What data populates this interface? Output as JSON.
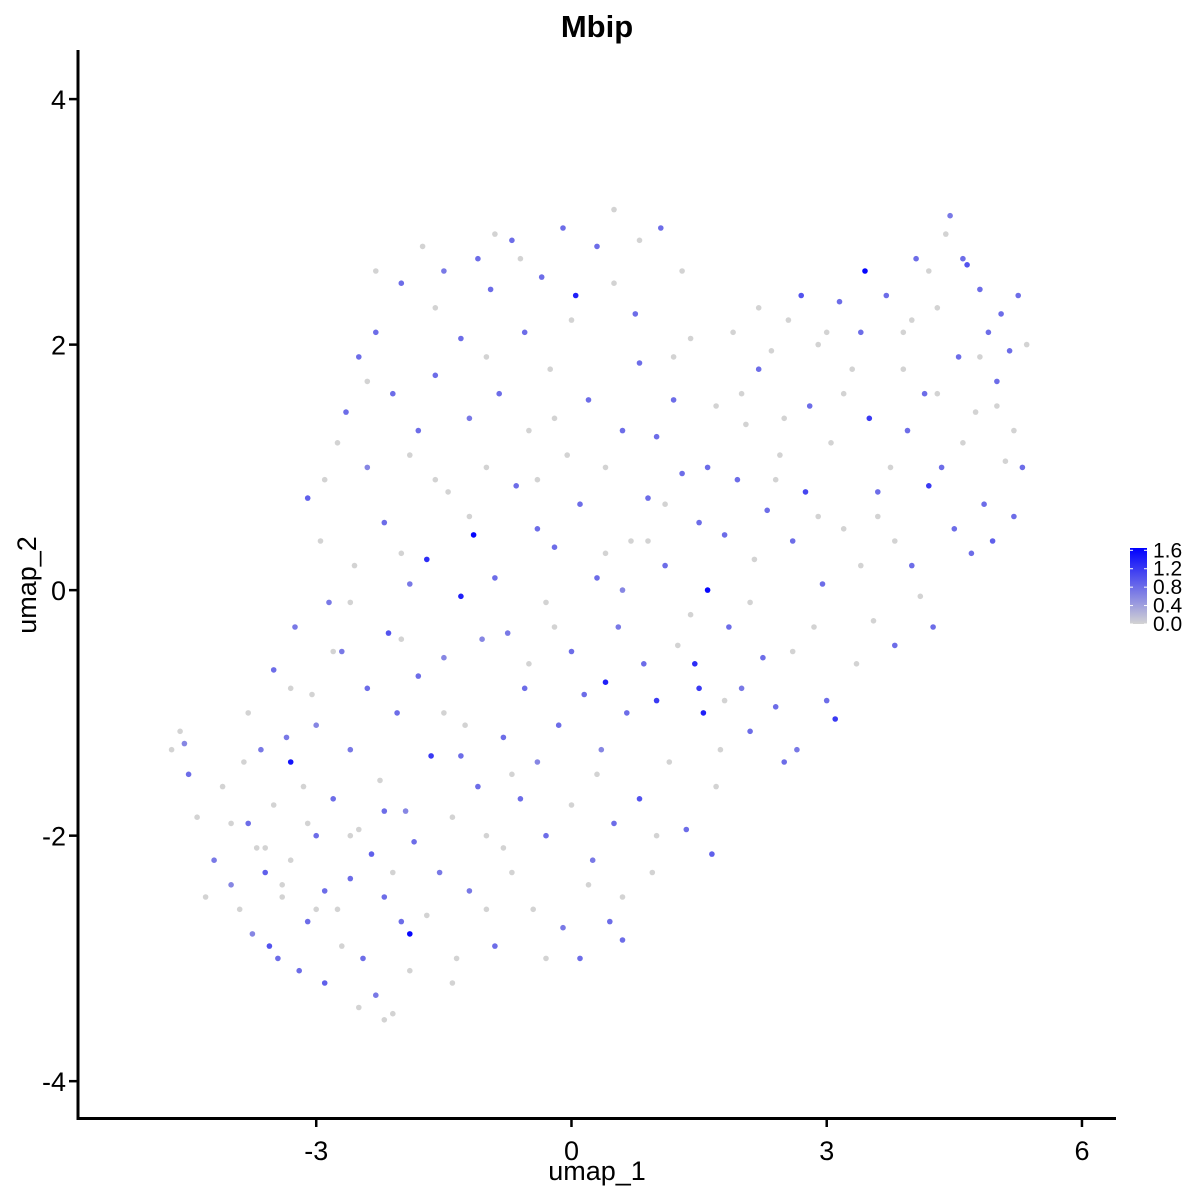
{
  "chart_data": {
    "type": "scatter",
    "title": "Mbip",
    "xlabel": "umap_1",
    "ylabel": "umap_2",
    "xlim": [
      -5.8,
      6.4
    ],
    "ylim": [
      -4.3,
      4.4
    ],
    "x_ticks": [
      -3,
      0,
      3,
      6
    ],
    "x_tick_labels": [
      "-3",
      "0",
      "3",
      "6"
    ],
    "y_ticks": [
      -4,
      -2,
      0,
      2,
      4
    ],
    "y_tick_labels": [
      "-4",
      "-2",
      "0",
      "2",
      "4"
    ],
    "grid": false,
    "legend": {
      "position": "right",
      "type": "colorbar",
      "min": 0.0,
      "max": 1.65,
      "ticks": [
        0.0,
        0.4,
        0.8,
        1.2,
        1.6
      ],
      "tick_labels": [
        "0.0",
        "0.4",
        "0.8",
        "1.2",
        "1.6"
      ],
      "low_color": "#d3d3d3",
      "high_color": "#0000ff"
    },
    "points": [
      [
        -4.7,
        -1.3,
        0
      ],
      [
        -4.6,
        -1.15,
        0
      ],
      [
        -4.55,
        -1.25,
        0.6
      ],
      [
        -4.5,
        -1.5,
        0.8
      ],
      [
        -4.4,
        -1.85,
        0
      ],
      [
        -4.2,
        -2.2,
        0.7
      ],
      [
        -4.1,
        -1.6,
        0
      ],
      [
        -4.0,
        -2.4,
        0.6
      ],
      [
        -3.9,
        -2.6,
        0
      ],
      [
        -3.85,
        -1.4,
        0
      ],
      [
        -3.8,
        -1.9,
        0.8
      ],
      [
        -3.75,
        -2.8,
        0.6
      ],
      [
        -3.7,
        -2.1,
        0
      ],
      [
        -3.65,
        -1.3,
        0.7
      ],
      [
        -3.6,
        -2.3,
        0.9
      ],
      [
        -3.55,
        -2.9,
        1.0
      ],
      [
        -3.5,
        -1.75,
        0
      ],
      [
        -3.5,
        -0.65,
        0.8
      ],
      [
        -3.45,
        -3.0,
        0.8
      ],
      [
        -3.4,
        -2.5,
        0
      ],
      [
        -3.35,
        -1.2,
        0.7
      ],
      [
        -3.3,
        -1.4,
        1.5
      ],
      [
        -3.3,
        -2.2,
        0
      ],
      [
        -3.25,
        -0.3,
        0.7
      ],
      [
        -3.2,
        -3.1,
        0.8
      ],
      [
        -3.15,
        -1.6,
        0
      ],
      [
        -3.1,
        -2.7,
        0.8
      ],
      [
        -3.1,
        0.75,
        0.9
      ],
      [
        -3.05,
        -0.85,
        0
      ],
      [
        -3.0,
        -2.0,
        0.8
      ],
      [
        -3.0,
        -1.1,
        0.6
      ],
      [
        -2.95,
        0.4,
        0
      ],
      [
        -2.9,
        -2.45,
        0.8
      ],
      [
        -2.9,
        -3.2,
        0.9
      ],
      [
        -2.85,
        -0.1,
        0.7
      ],
      [
        -2.8,
        -1.7,
        0.8
      ],
      [
        -2.75,
        1.2,
        0
      ],
      [
        -2.75,
        -2.6,
        0
      ],
      [
        -2.7,
        -0.5,
        0.7
      ],
      [
        -2.65,
        1.45,
        0.8
      ],
      [
        -2.6,
        -1.3,
        0.7
      ],
      [
        -2.6,
        -2.35,
        0.8
      ],
      [
        -2.55,
        0.2,
        0
      ],
      [
        -2.5,
        1.9,
        0.8
      ],
      [
        -2.5,
        -1.95,
        0
      ],
      [
        -2.45,
        -3.0,
        0.8
      ],
      [
        -2.4,
        -0.8,
        0.8
      ],
      [
        -2.4,
        1.0,
        0.6
      ],
      [
        -2.35,
        -2.15,
        0.9
      ],
      [
        -2.3,
        -3.3,
        0.7
      ],
      [
        -2.3,
        2.1,
        0.8
      ],
      [
        -2.25,
        -1.55,
        0
      ],
      [
        -2.2,
        0.55,
        0.8
      ],
      [
        -2.2,
        -2.5,
        0.8
      ],
      [
        -2.15,
        -0.35,
        1.0
      ],
      [
        -2.1,
        -3.45,
        0
      ],
      [
        -2.1,
        1.6,
        0.8
      ],
      [
        -2.05,
        -1.0,
        0.8
      ],
      [
        -2.0,
        -2.7,
        0.8
      ],
      [
        -2.0,
        2.5,
        0.8
      ],
      [
        -1.95,
        -1.8,
        0.6
      ],
      [
        -1.9,
        -2.8,
        1.6
      ],
      [
        -1.9,
        0.05,
        0.7
      ],
      [
        -1.85,
        -2.05,
        0.8
      ],
      [
        -1.8,
        1.3,
        0.8
      ],
      [
        -1.8,
        -0.7,
        0.8
      ],
      [
        -1.75,
        2.8,
        0
      ],
      [
        -1.7,
        -2.65,
        0
      ],
      [
        -1.7,
        0.25,
        1.3
      ],
      [
        -1.65,
        -1.35,
        1.2
      ],
      [
        -1.6,
        1.75,
        0.8
      ],
      [
        -1.55,
        -2.3,
        0.7
      ],
      [
        -1.5,
        2.6,
        0.7
      ],
      [
        -1.5,
        -0.55,
        0.6
      ],
      [
        -1.45,
        0.8,
        0
      ],
      [
        -1.4,
        -1.85,
        0
      ],
      [
        -1.35,
        -3.0,
        0
      ],
      [
        -1.3,
        2.05,
        0.8
      ],
      [
        -1.3,
        -0.05,
        1.4
      ],
      [
        -1.25,
        -1.1,
        0
      ],
      [
        -1.2,
        1.4,
        0.7
      ],
      [
        -1.2,
        -2.45,
        0.7
      ],
      [
        -1.15,
        0.45,
        1.6
      ],
      [
        -1.1,
        2.7,
        0.8
      ],
      [
        -1.1,
        -1.6,
        0.8
      ],
      [
        -1.05,
        -0.4,
        0.6
      ],
      [
        -1.0,
        1.0,
        0
      ],
      [
        -1.0,
        -2.0,
        0
      ],
      [
        -0.95,
        2.45,
        0.8
      ],
      [
        -0.9,
        0.1,
        0.8
      ],
      [
        -0.9,
        -2.9,
        0.8
      ],
      [
        -0.85,
        1.6,
        0.8
      ],
      [
        -0.8,
        -1.2,
        0.8
      ],
      [
        -0.75,
        -0.35,
        0.7
      ],
      [
        -0.7,
        2.85,
        0.8
      ],
      [
        -0.7,
        -2.3,
        0
      ],
      [
        -0.65,
        0.85,
        0.8
      ],
      [
        -0.6,
        -1.7,
        0.8
      ],
      [
        -0.55,
        2.1,
        0.8
      ],
      [
        -0.55,
        -0.8,
        0.8
      ],
      [
        -0.5,
        1.3,
        0
      ],
      [
        -0.45,
        -2.6,
        0
      ],
      [
        -0.4,
        0.5,
        0.8
      ],
      [
        -0.4,
        -1.4,
        0.6
      ],
      [
        -0.35,
        2.55,
        0.8
      ],
      [
        -0.3,
        -0.1,
        0
      ],
      [
        -0.3,
        -2.0,
        0.8
      ],
      [
        -0.25,
        1.8,
        0
      ],
      [
        -0.2,
        0.35,
        0.8
      ],
      [
        -0.15,
        -1.1,
        0.8
      ],
      [
        -0.1,
        2.95,
        0.8
      ],
      [
        -0.1,
        -2.75,
        0.7
      ],
      [
        -0.05,
        1.1,
        0
      ],
      [
        0.0,
        -0.5,
        0.8
      ],
      [
        0.0,
        -1.75,
        0
      ],
      [
        0.05,
        2.4,
        1.4
      ],
      [
        0.1,
        0.7,
        0.8
      ],
      [
        0.1,
        -3.0,
        0.8
      ],
      [
        0.15,
        -0.85,
        0.8
      ],
      [
        0.2,
        1.55,
        0.8
      ],
      [
        0.25,
        -2.2,
        0.7
      ],
      [
        0.3,
        0.1,
        0.8
      ],
      [
        0.3,
        2.8,
        0.8
      ],
      [
        0.35,
        -1.3,
        0.6
      ],
      [
        0.4,
        -0.75,
        1.4
      ],
      [
        0.4,
        1.0,
        0
      ],
      [
        0.45,
        -2.7,
        0.8
      ],
      [
        0.5,
        -1.9,
        0.8
      ],
      [
        0.5,
        2.5,
        0
      ],
      [
        0.55,
        -0.3,
        0.7
      ],
      [
        0.6,
        1.3,
        0.8
      ],
      [
        0.6,
        -2.85,
        0.8
      ],
      [
        0.65,
        -1.0,
        0.8
      ],
      [
        0.7,
        0.4,
        0
      ],
      [
        0.75,
        2.25,
        0.8
      ],
      [
        0.8,
        -1.7,
        1.0
      ],
      [
        0.8,
        1.85,
        0.8
      ],
      [
        0.85,
        -0.6,
        0.8
      ],
      [
        0.9,
        0.75,
        0.8
      ],
      [
        0.95,
        -2.3,
        0
      ],
      [
        1.0,
        1.25,
        0.8
      ],
      [
        1.0,
        -0.9,
        1.2
      ],
      [
        1.05,
        2.95,
        0.8
      ],
      [
        1.1,
        0.2,
        0.8
      ],
      [
        1.15,
        -1.4,
        0
      ],
      [
        1.2,
        1.55,
        0.8
      ],
      [
        1.25,
        -0.45,
        0
      ],
      [
        1.3,
        0.95,
        0.8
      ],
      [
        1.35,
        -1.95,
        0.8
      ],
      [
        1.4,
        2.05,
        0
      ],
      [
        1.45,
        -0.6,
        1.3
      ],
      [
        1.5,
        -0.8,
        1.2
      ],
      [
        1.5,
        0.55,
        0.8
      ],
      [
        1.55,
        -1.0,
        1.4
      ],
      [
        1.6,
        1.0,
        0.8
      ],
      [
        1.6,
        0.0,
        1.6
      ],
      [
        1.65,
        -2.15,
        0.9
      ],
      [
        1.7,
        1.5,
        0
      ],
      [
        1.75,
        -1.3,
        0
      ],
      [
        1.8,
        0.45,
        0.8
      ],
      [
        1.85,
        -0.3,
        0.8
      ],
      [
        1.9,
        2.1,
        0
      ],
      [
        1.95,
        0.9,
        0.8
      ],
      [
        2.0,
        -0.8,
        0.7
      ],
      [
        2.05,
        1.35,
        0
      ],
      [
        2.1,
        -1.15,
        0.8
      ],
      [
        2.15,
        0.25,
        0
      ],
      [
        2.2,
        1.8,
        0.8
      ],
      [
        2.25,
        -0.55,
        0.8
      ],
      [
        2.3,
        0.65,
        0.8
      ],
      [
        2.35,
        1.95,
        0
      ],
      [
        2.4,
        -0.95,
        0.8
      ],
      [
        2.45,
        1.1,
        0
      ],
      [
        2.5,
        -1.4,
        0.8
      ],
      [
        2.55,
        2.2,
        0
      ],
      [
        2.6,
        0.4,
        0.8
      ],
      [
        2.65,
        -1.3,
        0.7
      ],
      [
        2.7,
        2.4,
        1.0
      ],
      [
        2.75,
        0.8,
        1.1
      ],
      [
        2.8,
        1.5,
        0.8
      ],
      [
        2.85,
        -0.3,
        0
      ],
      [
        2.9,
        2.0,
        0
      ],
      [
        2.95,
        0.05,
        0.8
      ],
      [
        3.0,
        -0.9,
        0.8
      ],
      [
        3.05,
        1.2,
        0
      ],
      [
        3.1,
        -1.05,
        1.2
      ],
      [
        3.15,
        2.35,
        0.8
      ],
      [
        3.2,
        0.5,
        0
      ],
      [
        3.3,
        1.8,
        0
      ],
      [
        3.35,
        -0.6,
        0
      ],
      [
        3.4,
        2.1,
        0.8
      ],
      [
        3.45,
        2.6,
        1.6
      ],
      [
        3.5,
        1.4,
        1.2
      ],
      [
        3.55,
        -0.25,
        0
      ],
      [
        3.6,
        0.8,
        0.8
      ],
      [
        3.7,
        2.4,
        0.8
      ],
      [
        3.75,
        1.0,
        0
      ],
      [
        3.8,
        -0.45,
        0.8
      ],
      [
        3.9,
        2.1,
        0
      ],
      [
        3.95,
        1.3,
        0.8
      ],
      [
        4.0,
        0.2,
        0.8
      ],
      [
        4.05,
        2.7,
        0.8
      ],
      [
        4.1,
        -0.05,
        0
      ],
      [
        4.15,
        1.6,
        0.8
      ],
      [
        4.2,
        0.85,
        1.2
      ],
      [
        4.25,
        -0.3,
        0.8
      ],
      [
        4.3,
        2.3,
        0
      ],
      [
        4.35,
        1.0,
        0.8
      ],
      [
        4.4,
        2.9,
        0
      ],
      [
        4.45,
        3.05,
        0.7
      ],
      [
        4.5,
        0.5,
        0.8
      ],
      [
        4.55,
        1.9,
        0.8
      ],
      [
        4.6,
        2.7,
        0.8
      ],
      [
        4.65,
        2.65,
        1.0
      ],
      [
        4.7,
        0.3,
        0.8
      ],
      [
        4.75,
        1.45,
        0
      ],
      [
        4.8,
        2.45,
        0.8
      ],
      [
        4.85,
        0.7,
        0.8
      ],
      [
        4.9,
        2.1,
        0.8
      ],
      [
        4.95,
        0.4,
        0.9
      ],
      [
        5.0,
        1.7,
        0.8
      ],
      [
        5.05,
        2.25,
        0.8
      ],
      [
        5.1,
        1.05,
        0
      ],
      [
        5.15,
        1.95,
        0.8
      ],
      [
        5.2,
        0.6,
        0.8
      ],
      [
        5.25,
        2.4,
        0.8
      ],
      [
        5.3,
        1.0,
        0.8
      ],
      [
        5.35,
        2.0,
        0
      ],
      [
        -2.2,
        -1.8,
        0.8
      ],
      [
        -2.6,
        -0.1,
        0
      ],
      [
        -1.3,
        -1.35,
        0.8
      ],
      [
        0.6,
        0.0,
        0.6
      ],
      [
        -3.6,
        -2.1,
        0
      ],
      [
        -2.7,
        -2.9,
        0
      ],
      [
        -1.9,
        -3.1,
        0
      ],
      [
        -1.0,
        -2.6,
        0
      ],
      [
        0.2,
        -2.4,
        0
      ],
      [
        1.0,
        -2.0,
        0
      ],
      [
        -0.5,
        -0.6,
        0
      ],
      [
        -1.6,
        0.9,
        0
      ],
      [
        -2.3,
        2.6,
        0
      ],
      [
        -0.9,
        2.9,
        0
      ],
      [
        0.5,
        3.1,
        0
      ],
      [
        1.3,
        2.6,
        0
      ],
      [
        2.0,
        1.6,
        0
      ],
      [
        3.2,
        1.6,
        0
      ],
      [
        4.0,
        2.2,
        0
      ],
      [
        4.6,
        1.2,
        0
      ],
      [
        5.0,
        1.5,
        0
      ],
      [
        3.8,
        0.4,
        0
      ],
      [
        2.6,
        -0.5,
        0
      ],
      [
        1.7,
        -1.6,
        0
      ],
      [
        0.6,
        -2.5,
        0
      ],
      [
        -0.3,
        -3.0,
        0
      ],
      [
        -1.4,
        -3.2,
        0
      ],
      [
        -2.5,
        -3.4,
        0
      ],
      [
        -2.2,
        -3.5,
        0
      ],
      [
        -3.0,
        -2.6,
        0
      ],
      [
        -4.0,
        -1.9,
        0
      ],
      [
        -4.3,
        -2.5,
        0
      ],
      [
        -3.3,
        -0.8,
        0
      ],
      [
        -2.9,
        0.9,
        0
      ],
      [
        -2.4,
        1.7,
        0
      ],
      [
        -1.6,
        2.3,
        0
      ],
      [
        -0.6,
        2.7,
        0
      ],
      [
        0.8,
        2.85,
        0
      ],
      [
        -0.2,
        1.4,
        0
      ],
      [
        0.9,
        0.4,
        0
      ],
      [
        -1.2,
        0.6,
        0
      ],
      [
        -2.0,
        -0.4,
        0
      ],
      [
        -0.8,
        -2.1,
        0
      ],
      [
        0.3,
        -1.5,
        0
      ],
      [
        1.4,
        -0.2,
        0
      ],
      [
        2.4,
        0.9,
        0
      ],
      [
        3.4,
        0.2,
        0
      ],
      [
        4.3,
        1.6,
        0
      ],
      [
        5.2,
        1.3,
        0
      ],
      [
        2.1,
        -0.1,
        0
      ],
      [
        1.2,
        1.9,
        0
      ],
      [
        -0.4,
        0.9,
        0
      ],
      [
        -1.9,
        1.1,
        0
      ],
      [
        -3.1,
        -1.9,
        0
      ],
      [
        -3.8,
        -1.0,
        0
      ],
      [
        -2.1,
        -2.3,
        0
      ],
      [
        -0.7,
        -1.5,
        0
      ],
      [
        0.4,
        0.3,
        0
      ],
      [
        1.8,
        -0.9,
        0
      ],
      [
        2.9,
        0.6,
        0
      ],
      [
        3.9,
        1.8,
        0
      ],
      [
        4.8,
        1.9,
        0
      ],
      [
        4.2,
        2.6,
        0
      ],
      [
        3.0,
        2.1,
        0
      ],
      [
        2.2,
        2.3,
        0
      ],
      [
        0.0,
        2.2,
        0
      ],
      [
        -1.0,
        1.9,
        0
      ],
      [
        -2.0,
        0.3,
        0
      ],
      [
        -2.8,
        -0.5,
        0
      ],
      [
        -3.4,
        -2.4,
        0
      ],
      [
        -2.6,
        -2.0,
        0
      ],
      [
        -1.5,
        -1.0,
        0
      ],
      [
        -0.2,
        -0.3,
        0
      ],
      [
        1.1,
        0.7,
        0
      ],
      [
        2.5,
        1.4,
        0
      ],
      [
        3.6,
        0.6,
        0
      ]
    ]
  }
}
